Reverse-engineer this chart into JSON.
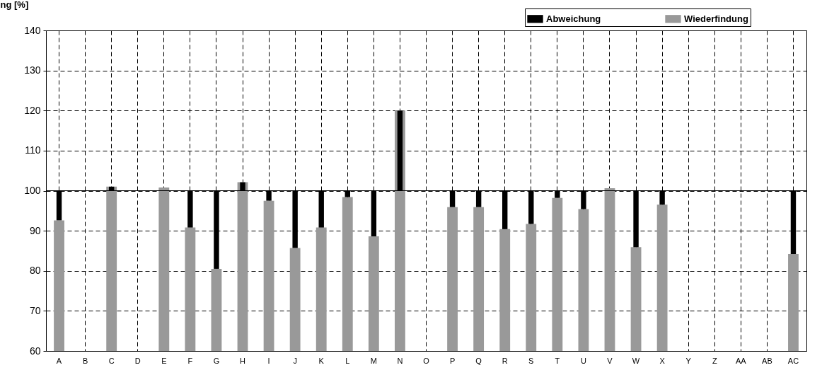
{
  "chart_data": {
    "type": "bar",
    "ylabel": "ng [%]",
    "categories": [
      "A",
      "B",
      "C",
      "D",
      "E",
      "F",
      "G",
      "H",
      "I",
      "J",
      "K",
      "L",
      "M",
      "N",
      "O",
      "P",
      "Q",
      "R",
      "S",
      "T",
      "U",
      "V",
      "W",
      "X",
      "Y",
      "Z",
      "AA",
      "AB",
      "AC"
    ],
    "series": [
      {
        "name": "Abweichung",
        "color": "#000000",
        "base": [
          100,
          null,
          100,
          null,
          null,
          100,
          100,
          100,
          100,
          100,
          100,
          100,
          100,
          100,
          null,
          100,
          100,
          100,
          100,
          100,
          100,
          null,
          100,
          100,
          null,
          null,
          null,
          null,
          100
        ],
        "values": [
          -7.4,
          null,
          1.0,
          null,
          null,
          -9.2,
          -19.5,
          2.1,
          -2.5,
          -14.3,
          -9.2,
          -1.6,
          -11.4,
          20,
          null,
          -4.1,
          -4.1,
          -9.6,
          -8.3,
          -1.8,
          -4.6,
          null,
          -14.1,
          -3.5,
          null,
          null,
          null,
          null,
          -15.8
        ]
      },
      {
        "name": "Wiederfindung",
        "color": "#999999",
        "values": [
          92.6,
          null,
          101.0,
          null,
          100.8,
          90.8,
          80.5,
          102.1,
          97.5,
          85.7,
          90.8,
          98.4,
          88.6,
          120,
          null,
          95.9,
          95.9,
          90.4,
          91.7,
          98.2,
          95.4,
          100.6,
          85.9,
          96.5,
          null,
          null,
          null,
          null,
          84.2
        ]
      }
    ],
    "ylim": [
      60,
      140
    ],
    "yticks": [
      60,
      70,
      80,
      90,
      100,
      110,
      120,
      130,
      140
    ],
    "ref_lines": [
      {
        "axis": "y",
        "value": 100
      }
    ],
    "grid": true,
    "legend": "top right"
  }
}
